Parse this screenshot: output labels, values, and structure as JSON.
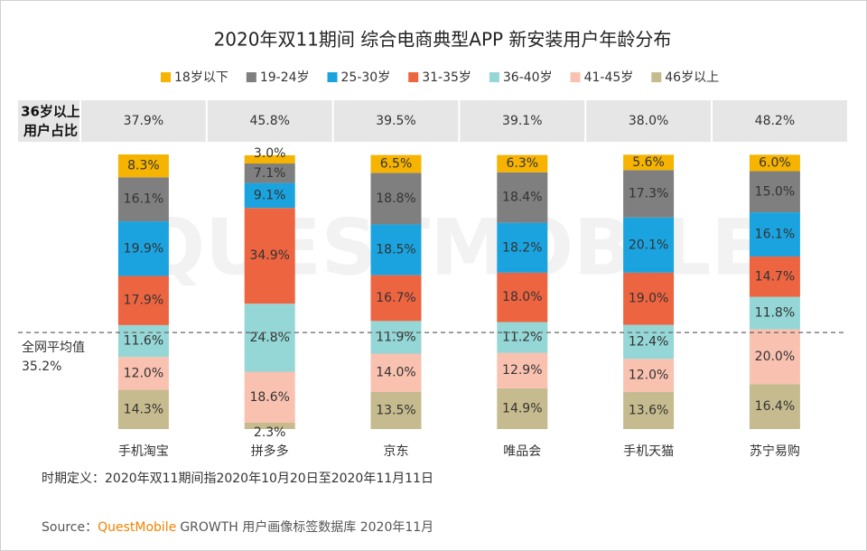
{
  "chart_data": {
    "type": "stacked_bar",
    "title": "2020年双11期间 综合电商典型APP 新安装用户年龄分布",
    "legend": "top",
    "watermark": "QUESTMOBILE",
    "categories": [
      "手机淘宝",
      "拼多多",
      "京东",
      "唯品会",
      "手机天猫",
      "苏宁易购"
    ],
    "series": [
      {
        "name": "18岁以下",
        "color": "#f6b400",
        "values": [
          8.3,
          3.0,
          6.5,
          6.3,
          5.6,
          6.0
        ],
        "value_labels": [
          "8.3%",
          "3.0%",
          "6.5%",
          "6.3%",
          "5.6%",
          "6.0%"
        ]
      },
      {
        "name": "19-24岁",
        "color": "#7f7f7f",
        "values": [
          16.1,
          7.1,
          18.8,
          18.4,
          17.3,
          15.0
        ],
        "value_labels": [
          "16.1%",
          "7.1%",
          "18.8%",
          "18.4%",
          "17.3%",
          "15.0%"
        ]
      },
      {
        "name": "25-30岁",
        "color": "#1ba3df",
        "values": [
          19.9,
          9.1,
          18.5,
          18.2,
          20.1,
          16.1
        ],
        "value_labels": [
          "19.9%",
          "9.1%",
          "18.5%",
          "18.2%",
          "20.1%",
          "16.1%"
        ]
      },
      {
        "name": "31-35岁",
        "color": "#ed6441",
        "values": [
          17.9,
          34.9,
          16.7,
          18.0,
          19.0,
          14.7
        ],
        "value_labels": [
          "17.9%",
          "34.9%",
          "16.7%",
          "18.0%",
          "19.0%",
          "14.7%"
        ]
      },
      {
        "name": "36-40岁",
        "color": "#94d7d6",
        "values": [
          11.6,
          24.8,
          11.9,
          11.2,
          12.4,
          11.8
        ],
        "value_labels": [
          "11.6%",
          "24.8%",
          "11.9%",
          "11.2%",
          "12.4%",
          "11.8%"
        ]
      },
      {
        "name": "41-45岁",
        "color": "#f9c1b0",
        "values": [
          12.0,
          18.6,
          14.0,
          12.9,
          12.0,
          20.0
        ],
        "value_labels": [
          "12.0%",
          "18.6%",
          "14.0%",
          "12.9%",
          "12.0%",
          "20.0%"
        ]
      },
      {
        "name": "46岁以上",
        "color": "#c6bb8e",
        "values": [
          14.3,
          2.3,
          13.5,
          14.9,
          13.6,
          16.4
        ],
        "value_labels": [
          "14.3%",
          "2.3%",
          "13.5%",
          "14.9%",
          "13.6%",
          "16.4%"
        ]
      }
    ],
    "share_row": {
      "label": [
        "36岁以上",
        "用户占比"
      ],
      "values": [
        37.9,
        45.8,
        39.5,
        39.1,
        38.0,
        48.2
      ],
      "value_labels": [
        "37.9%",
        "45.8%",
        "39.5%",
        "39.1%",
        "38.0%",
        "48.2%"
      ]
    },
    "average": {
      "label": "全网平均值",
      "value": 35.2,
      "value_label": "35.2%"
    },
    "footnote": "时期定义：2020年双11期间指2020年10月20日至2020年11月11日",
    "source": {
      "prefix": "Source：",
      "brand": "QuestMobile",
      "text": "GROWTH 用户画像标签数据库 2020年11月"
    }
  }
}
